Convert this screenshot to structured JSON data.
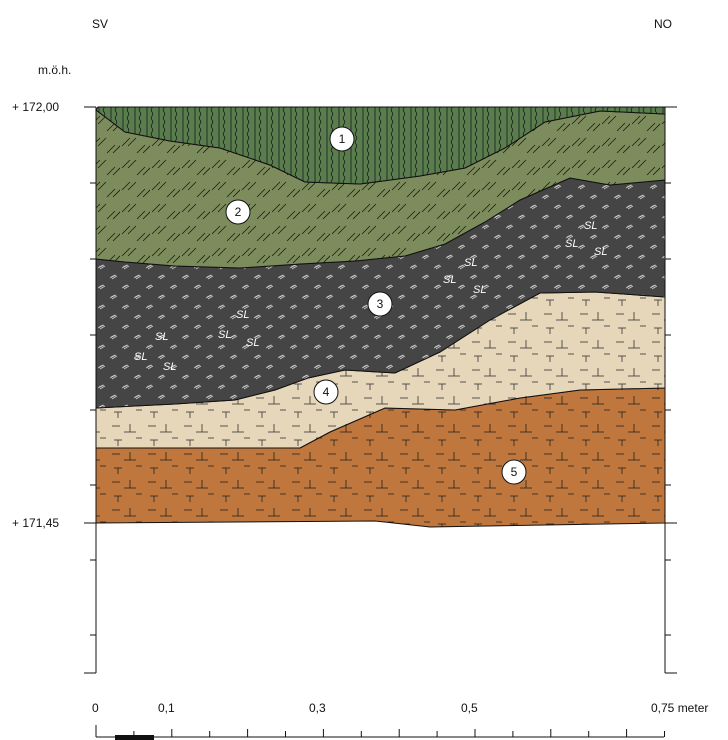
{
  "orientation": {
    "left": "SV",
    "right": "NO"
  },
  "elevation_unit": "m.ö.h.",
  "elevations": {
    "top": "+ 172,00",
    "bottom": "+ 171,45"
  },
  "scale": {
    "labels": [
      "0",
      "0,1",
      "0,3",
      "0,5",
      "0,75 meter"
    ]
  },
  "layers": [
    {
      "number": "1",
      "color": "#5a7d4e"
    },
    {
      "number": "2",
      "color": "#7d8c5c"
    },
    {
      "number": "3",
      "color": "#454545"
    },
    {
      "number": "4",
      "color": "#e6d6ba"
    },
    {
      "number": "5",
      "color": "#c0773e"
    }
  ],
  "sl_label": "SL",
  "colors": {
    "line": "#111111",
    "background": "#ffffff"
  }
}
